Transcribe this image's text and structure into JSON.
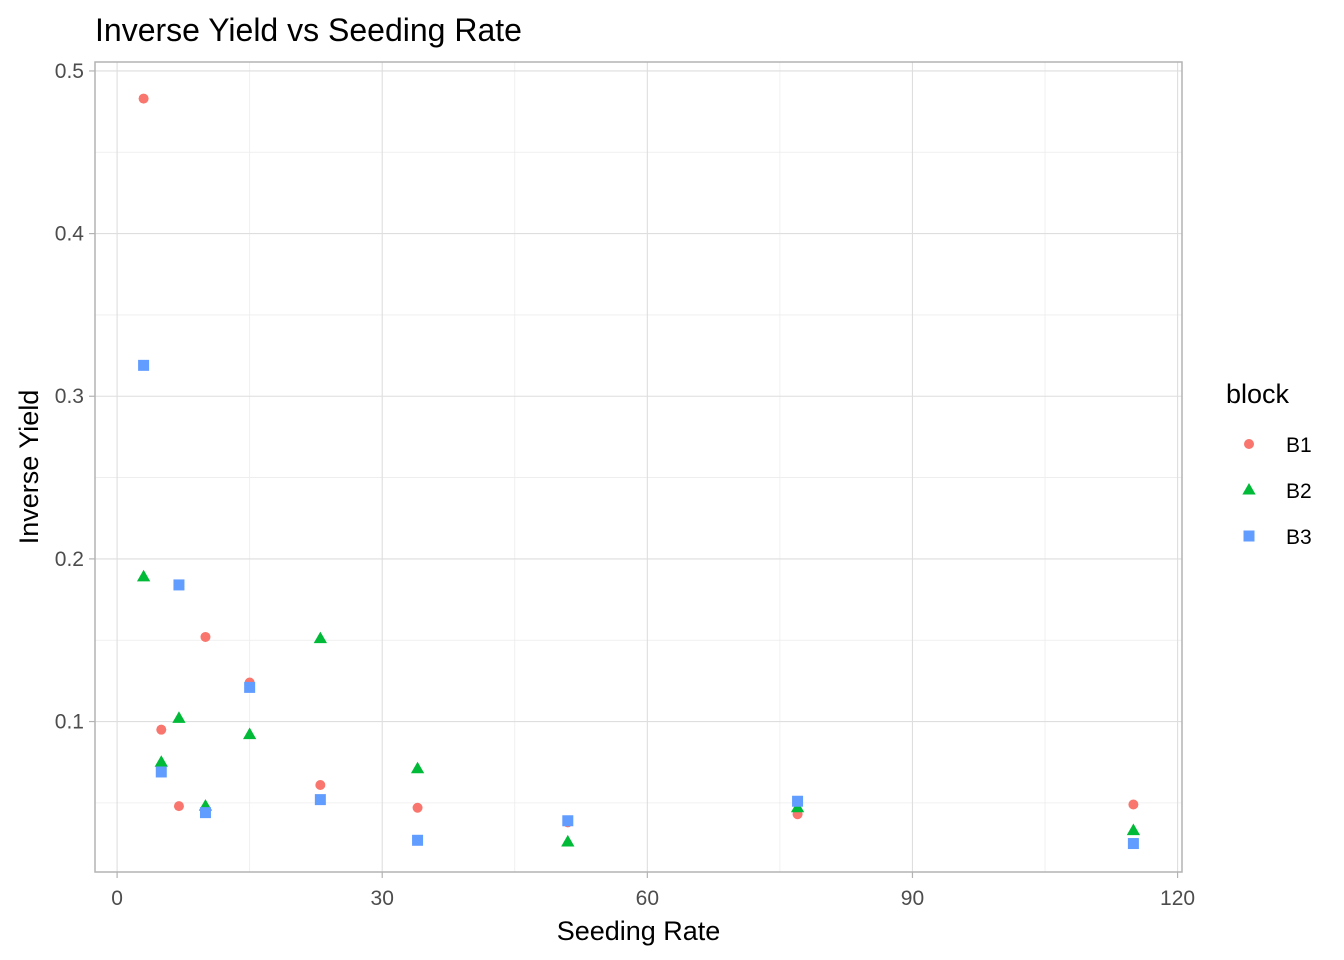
{
  "chart_data": {
    "type": "scatter",
    "title": "Inverse Yield vs Seeding Rate",
    "xlabel": "Seeding Rate",
    "ylabel": "Inverse Yield",
    "xlim": [
      -2.5,
      120.5
    ],
    "ylim": [
      0.0075,
      0.5055
    ],
    "x_ticks": [
      0,
      30,
      60,
      90,
      120
    ],
    "y_ticks": [
      0.1,
      0.2,
      0.3,
      0.4,
      0.5
    ],
    "x_tick_labels": [
      "0",
      "30",
      "60",
      "90",
      "120"
    ],
    "y_tick_labels": [
      "0.1",
      "0.2",
      "0.3",
      "0.4",
      "0.5"
    ],
    "grid": true,
    "legend": {
      "title": "block",
      "position": "right"
    },
    "series": [
      {
        "name": "B1",
        "color": "#F8766D",
        "shape": "circle",
        "points": [
          [
            3,
            0.483
          ],
          [
            5,
            0.095
          ],
          [
            7,
            0.048
          ],
          [
            10,
            0.152
          ],
          [
            15,
            0.124
          ],
          [
            23,
            0.061
          ],
          [
            34,
            0.047
          ],
          [
            51,
            0.038
          ],
          [
            77,
            0.043
          ],
          [
            115,
            0.049
          ]
        ]
      },
      {
        "name": "B2",
        "color": "#00BA38",
        "shape": "triangle",
        "points": [
          [
            3,
            0.189
          ],
          [
            5,
            0.075
          ],
          [
            7,
            0.102
          ],
          [
            10,
            0.048
          ],
          [
            15,
            0.092
          ],
          [
            23,
            0.151
          ],
          [
            34,
            0.071
          ],
          [
            51,
            0.026
          ],
          [
            77,
            0.047
          ],
          [
            115,
            0.033
          ]
        ]
      },
      {
        "name": "B3",
        "color": "#619CFF",
        "shape": "square",
        "points": [
          [
            3,
            0.319
          ],
          [
            5,
            0.069
          ],
          [
            7,
            0.184
          ],
          [
            10,
            0.044
          ],
          [
            15,
            0.121
          ],
          [
            23,
            0.052
          ],
          [
            34,
            0.027
          ],
          [
            51,
            0.039
          ],
          [
            77,
            0.051
          ],
          [
            115,
            0.025
          ]
        ]
      }
    ]
  }
}
